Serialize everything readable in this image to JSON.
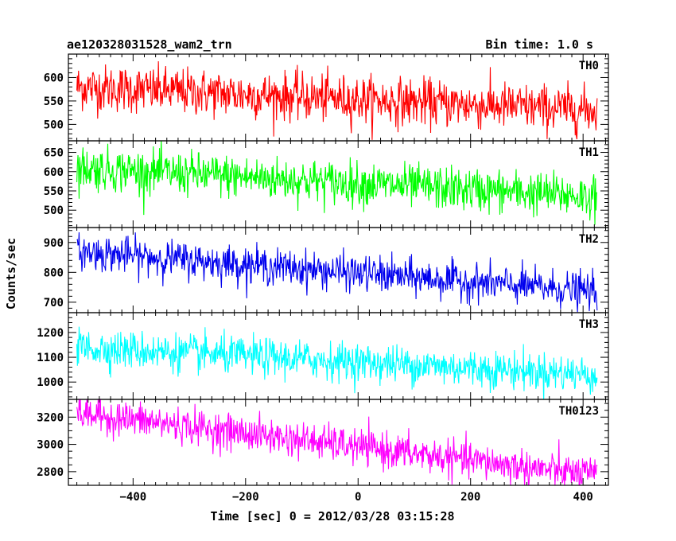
{
  "chart_data": {
    "type": "line",
    "title": "ae120328031528_wam2_trn",
    "subtitle": "Bin time: 1.0 s",
    "xlabel": "Time [sec] 0 = 2012/03/28 03:15:28",
    "ylabel": "Counts/sec",
    "xlim": [
      -515,
      445
    ],
    "x_range": [
      -500,
      425
    ],
    "x_step": 1.0,
    "xticks": [
      -400,
      -200,
      0,
      200,
      400
    ],
    "xtick_labels": [
      "−400",
      "−200",
      "0",
      "200",
      "400"
    ],
    "grid": false,
    "panels": [
      {
        "name": "TH0",
        "color": "#ff0000",
        "ylim": [
          465,
          650
        ],
        "yticks": [
          500,
          550,
          600
        ],
        "yticks_minor": [
          480,
          490,
          500,
          510,
          520,
          530,
          540,
          550,
          560,
          570,
          580,
          590,
          600,
          610,
          620,
          630,
          640
        ],
        "trend": {
          "start": 580,
          "end": 530
        },
        "noise_sd": 25
      },
      {
        "name": "TH1",
        "color": "#00ff00",
        "ylim": [
          455,
          680
        ],
        "yticks": [
          500,
          550,
          600,
          650
        ],
        "trend": {
          "start": 610,
          "end": 535
        },
        "noise_sd": 28
      },
      {
        "name": "TH2",
        "color": "#0000ee",
        "ylim": [
          665,
          950
        ],
        "yticks": [
          700,
          800,
          900
        ],
        "trend": {
          "start": 870,
          "end": 735
        },
        "noise_sd": 30
      },
      {
        "name": "TH3",
        "color": "#00ffff",
        "ylim": [
          930,
          1280
        ],
        "yticks": [
          1000,
          1100,
          1200
        ],
        "trend": {
          "start": 1140,
          "end": 1030
        },
        "noise_sd": 38
      },
      {
        "name": "TH0123",
        "color": "#ff00ff",
        "ylim": [
          2700,
          3330
        ],
        "yticks": [
          2800,
          3000,
          3200
        ],
        "trend": {
          "start": 3230,
          "end": 2770
        },
        "noise_sd": 65
      }
    ]
  }
}
